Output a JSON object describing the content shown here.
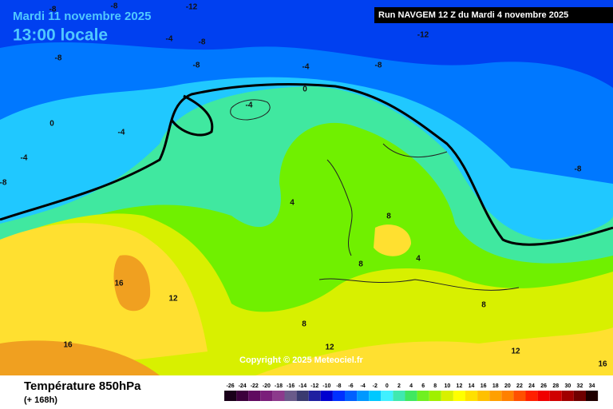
{
  "header": {
    "date": "Mardi 11 novembre 2025",
    "time": "13:00 locale",
    "run": "Run NAVGEM 12 Z du Mardi 4 novembre 2025"
  },
  "copyright": "Copyright © 2025 Meteociel.fr",
  "footer": {
    "title": "Température 850hPa",
    "subtitle": "(+ 168h)"
  },
  "contour_labels": [
    -12,
    -8,
    -8,
    -4,
    -8,
    -12,
    -8,
    -8,
    -4,
    -8,
    0,
    -4,
    0,
    -4,
    -4,
    -8,
    -8,
    4,
    8,
    8,
    4,
    16,
    12,
    8,
    8,
    12,
    12,
    16,
    16
  ],
  "colorbar": {
    "ticks": [
      -26,
      -24,
      -22,
      -20,
      -18,
      -16,
      -14,
      -12,
      -10,
      -8,
      -6,
      -4,
      -2,
      0,
      2,
      4,
      6,
      8,
      10,
      12,
      14,
      16,
      18,
      20,
      22,
      24,
      26,
      28,
      30,
      32,
      34
    ],
    "colors": [
      "#1a001a",
      "#3c003c",
      "#600a60",
      "#7a1f7a",
      "#8c3a8c",
      "#6a5a8a",
      "#3a3a70",
      "#2020a0",
      "#0000d0",
      "#0030ff",
      "#0060ff",
      "#0098ff",
      "#00c8ff",
      "#40f0ff",
      "#40e8b0",
      "#40e860",
      "#70f020",
      "#a0f000",
      "#d8f000",
      "#ffff00",
      "#ffe000",
      "#ffc000",
      "#ffa000",
      "#ff8000",
      "#ff5000",
      "#ff2000",
      "#f00000",
      "#d00000",
      "#a00000",
      "#700000",
      "#200000"
    ]
  }
}
